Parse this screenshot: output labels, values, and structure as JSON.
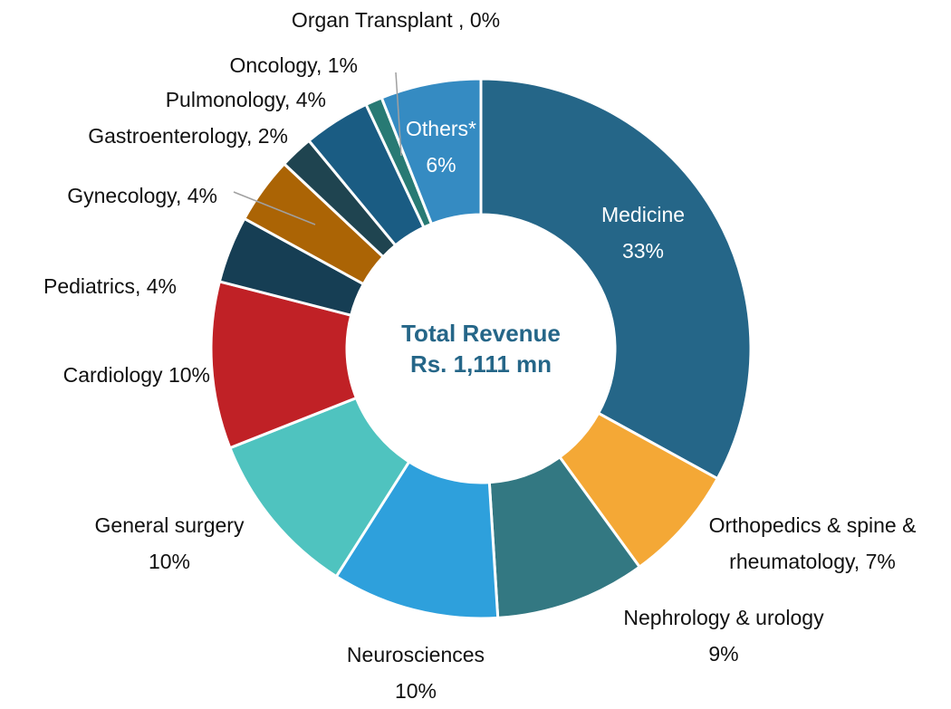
{
  "chart_data": {
    "type": "donut",
    "categories": [
      "Medicine",
      "Orthopedics & spine & rheumatology,",
      "Nephrology & urology",
      "Neurosciences",
      "General surgery",
      "Cardiology",
      "Pediatrics,",
      "Gynecology,",
      "Gastroenterology,",
      "Pulmonology,",
      "Oncology,",
      "Organ Transplant ,",
      "Others*"
    ],
    "values": [
      33,
      7,
      9,
      10,
      10,
      10,
      4,
      4,
      2,
      4,
      1,
      0,
      6
    ],
    "value_labels": [
      "33%",
      "7%",
      "9%",
      "10%",
      "10%",
      "10%",
      "4%",
      "4%",
      "2%",
      "4%",
      "1%",
      "0%",
      "6%"
    ],
    "colors": [
      "#256688",
      "#f4a836",
      "#337882",
      "#2ea0dc",
      "#4fc3bf",
      "#c02126",
      "#163e54",
      "#ab6405",
      "#1f4450",
      "#1a5c83",
      "#287a74",
      "#1b9e8d",
      "#358bc2"
    ],
    "center_text": [
      "Total Revenue",
      "Rs. 1,111 mn"
    ]
  }
}
